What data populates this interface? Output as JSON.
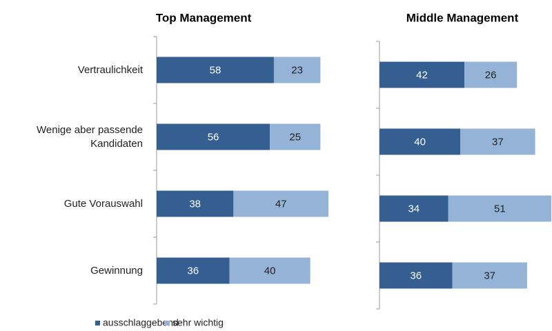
{
  "chart_data": [
    {
      "type": "bar",
      "orientation": "horizontal",
      "stacked": true,
      "title": "Top Management",
      "categories": [
        "Vertraulichkeit",
        "Wenige aber passende Kandidaten",
        "Gute Vorauswahl",
        "Gewinnung"
      ],
      "xlim": [
        0,
        100
      ],
      "series": [
        {
          "name": "ausschlaggebend",
          "color": "#355e91",
          "values": [
            58,
            56,
            38,
            36
          ]
        },
        {
          "name": "sehr wichtig",
          "color": "#95b3d7",
          "values": [
            23,
            25,
            47,
            40
          ]
        }
      ]
    },
    {
      "type": "bar",
      "orientation": "horizontal",
      "stacked": true,
      "title": "Middle Management",
      "xlim": [
        0,
        100
      ],
      "series": [
        {
          "color": "#355e91",
          "values": [
            42,
            40,
            34,
            36
          ]
        },
        {
          "color": "#95b3d7",
          "values": [
            26,
            37,
            51,
            37
          ]
        }
      ]
    }
  ]
}
